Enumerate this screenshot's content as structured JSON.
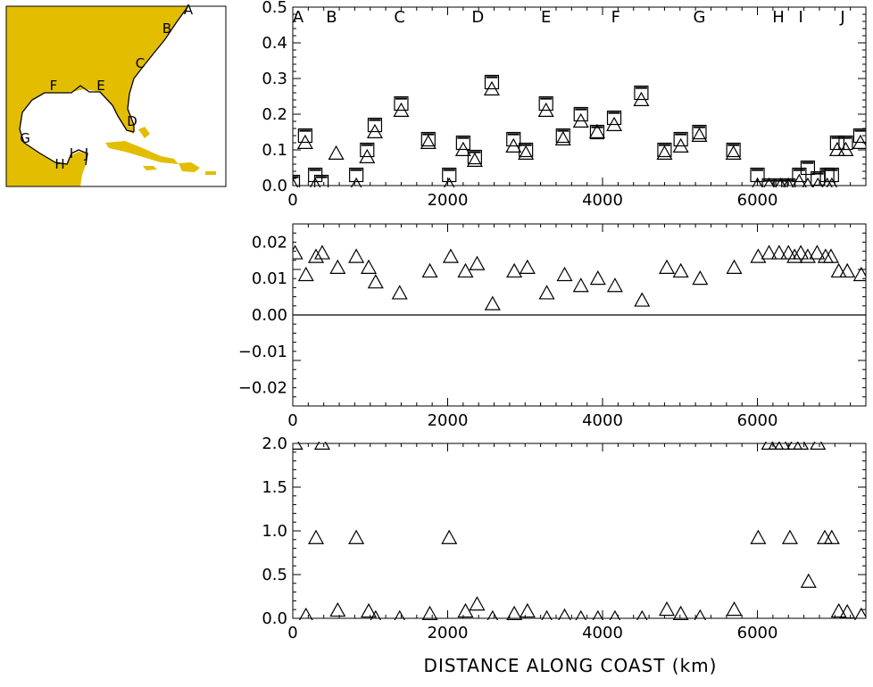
{
  "colors": {
    "land": "#e3bd00",
    "ink": "#000000",
    "coast_line": "#ffffff"
  },
  "map_inset": {
    "site_labels": [
      "A",
      "B",
      "C",
      "D",
      "E",
      "F",
      "G",
      "H",
      "I",
      "J"
    ]
  },
  "chart_data": [
    {
      "type": "scatter",
      "panel": "top",
      "title": "",
      "xlabel": "",
      "ylabel": "",
      "xlim": [
        0,
        7400
      ],
      "ylim": [
        0,
        0.5
      ],
      "x_ticks": [
        0,
        2000,
        4000,
        6000
      ],
      "y_tick_labels": [
        "0.0",
        "0.1",
        "0.2",
        "0.3",
        "0.4",
        "0.5"
      ],
      "grid": false,
      "site_markers": [
        {
          "label": "A",
          "x": 0
        },
        {
          "label": "B",
          "x": 500
        },
        {
          "label": "C",
          "x": 1380
        },
        {
          "label": "D",
          "x": 2390
        },
        {
          "label": "E",
          "x": 3270
        },
        {
          "label": "F",
          "x": 4170
        },
        {
          "label": "G",
          "x": 5250
        },
        {
          "label": "H",
          "x": 6270
        },
        {
          "label": "I",
          "x": 6560
        },
        {
          "label": "J",
          "x": 7100
        }
      ],
      "series": [
        {
          "marker": "triangle",
          "x": [
            0,
            160,
            290,
            560,
            820,
            960,
            1060,
            1400,
            1750,
            2020,
            2200,
            2350,
            2570,
            2850,
            3010,
            3270,
            3490,
            3720,
            3930,
            4150,
            4500,
            4800,
            5010,
            5250,
            5690,
            6000,
            6150,
            6300,
            6400,
            6540,
            6650,
            6780,
            6900,
            6960,
            7030,
            7140,
            7330
          ],
          "y": [
            0.0,
            0.12,
            0.0,
            0.09,
            0.0,
            0.08,
            0.15,
            0.21,
            0.12,
            0.0,
            0.1,
            0.07,
            0.27,
            0.11,
            0.09,
            0.21,
            0.13,
            0.18,
            0.15,
            0.17,
            0.24,
            0.09,
            0.11,
            0.14,
            0.09,
            0.0,
            0.0,
            0.0,
            0.0,
            0.01,
            0.0,
            0.0,
            0.0,
            0.0,
            0.1,
            0.1,
            0.12
          ]
        },
        {
          "marker": "square",
          "x": [
            0,
            160,
            290,
            370,
            820,
            960,
            1060,
            1400,
            1750,
            2020,
            2200,
            2350,
            2570,
            2850,
            3010,
            3270,
            3490,
            3720,
            3930,
            4150,
            4500,
            4800,
            5010,
            5250,
            5690,
            6000,
            6150,
            6300,
            6400,
            6540,
            6650,
            6780,
            6900,
            6960,
            7030,
            7140,
            7330
          ],
          "y": [
            0.01,
            0.14,
            0.03,
            0.01,
            0.03,
            0.1,
            0.17,
            0.23,
            0.13,
            0.03,
            0.12,
            0.08,
            0.29,
            0.13,
            0.1,
            0.23,
            0.14,
            0.2,
            0.15,
            0.19,
            0.26,
            0.1,
            0.13,
            0.15,
            0.1,
            0.03,
            0.0,
            0.0,
            0.0,
            0.03,
            0.05,
            0.02,
            0.03,
            0.03,
            0.12,
            0.12,
            0.14
          ]
        }
      ]
    },
    {
      "type": "scatter",
      "panel": "middle",
      "title": "",
      "xlabel": "",
      "ylabel": "",
      "xlim": [
        0,
        7400
      ],
      "ylim": [
        -0.025,
        0.025
      ],
      "x_ticks": [
        0,
        2000,
        4000,
        6000
      ],
      "y_tick_labels": [
        "−0.02",
        "−0.01",
        "0.00",
        "0.01",
        "0.02"
      ],
      "reference_line": 0,
      "grid": false,
      "series": [
        {
          "marker": "triangle",
          "x": [
            30,
            170,
            300,
            380,
            580,
            820,
            980,
            1070,
            1380,
            1770,
            2040,
            2230,
            2380,
            2580,
            2860,
            3030,
            3280,
            3510,
            3720,
            3940,
            4160,
            4510,
            4830,
            5010,
            5260,
            5700,
            6010,
            6150,
            6280,
            6400,
            6480,
            6560,
            6650,
            6770,
            6880,
            6950,
            7050,
            7160,
            7340
          ],
          "y": [
            0.017,
            0.011,
            0.016,
            0.017,
            0.013,
            0.016,
            0.013,
            0.009,
            0.006,
            0.012,
            0.016,
            0.012,
            0.014,
            0.003,
            0.012,
            0.013,
            0.006,
            0.011,
            0.008,
            0.01,
            0.008,
            0.004,
            0.013,
            0.012,
            0.01,
            0.013,
            0.016,
            0.017,
            0.017,
            0.017,
            0.016,
            0.017,
            0.016,
            0.017,
            0.016,
            0.016,
            0.012,
            0.012,
            0.011
          ]
        }
      ]
    },
    {
      "type": "scatter",
      "panel": "bottom",
      "title": "",
      "xlabel": "DISTANCE ALONG COAST (km)",
      "ylabel": "",
      "xlim": [
        0,
        7400
      ],
      "ylim": [
        0,
        2.0
      ],
      "x_ticks": [
        0,
        2000,
        4000,
        6000
      ],
      "y_tick_labels": [
        "0.0",
        "0.5",
        "1.0",
        "1.5",
        "2.0"
      ],
      "grid": false,
      "series": [
        {
          "marker": "triangle",
          "x": [
            30,
            170,
            300,
            380,
            580,
            820,
            980,
            1070,
            1380,
            1770,
            2020,
            2230,
            2380,
            2580,
            2860,
            3030,
            3280,
            3510,
            3720,
            3940,
            4160,
            4510,
            4830,
            5010,
            5260,
            5700,
            6010,
            6150,
            6240,
            6320,
            6420,
            6480,
            6560,
            6660,
            6780,
            6870,
            6960,
            7050,
            7160,
            7340
          ],
          "y": [
            2.0,
            0.03,
            0.92,
            2.0,
            0.09,
            0.92,
            0.08,
            0.0,
            0.0,
            0.05,
            0.92,
            0.08,
            0.16,
            0.0,
            0.05,
            0.08,
            0.0,
            0.02,
            0.0,
            0.0,
            0.0,
            0.0,
            0.1,
            0.05,
            0.01,
            0.1,
            0.92,
            2.0,
            2.0,
            2.0,
            0.92,
            2.0,
            2.0,
            0.42,
            2.0,
            0.92,
            0.92,
            0.08,
            0.07,
            0.03
          ]
        }
      ]
    }
  ]
}
